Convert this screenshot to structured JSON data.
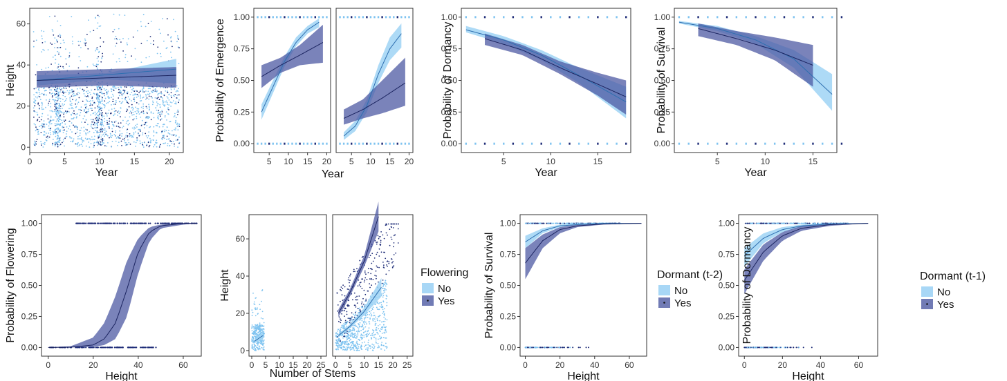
{
  "colors": {
    "no": "#9fd3f5",
    "yes": "#4e5aa3",
    "no_pt": "#7ec3f0",
    "yes_pt": "#1f2d78",
    "frame": "#333333"
  },
  "legends": [
    {
      "title": "Flowering",
      "items": [
        "No",
        "Yes"
      ]
    },
    {
      "title": "Dormant (t-2)",
      "items": [
        "No",
        "Yes"
      ]
    },
    {
      "title": "Dormant (t-1)",
      "items": [
        "No",
        "Yes"
      ]
    }
  ],
  "chart_data": [
    {
      "type": "scatter",
      "xlabel": "Year",
      "ylabel": "Height",
      "xlim": [
        0,
        22
      ],
      "ylim": [
        0,
        65
      ],
      "xticks": [
        0,
        5,
        10,
        15,
        20
      ],
      "yticks": [
        0,
        20,
        40,
        60
      ],
      "points_note": "dense jittered points per year",
      "series": [
        {
          "name": "No",
          "fit": {
            "x": [
              1,
              21
            ],
            "y": [
              32.5,
              38
            ]
          },
          "band": {
            "x": [
              1,
              11,
              21
            ],
            "lo": [
              30,
              33,
              31
            ],
            "hi": [
              35,
              36,
              43
            ]
          }
        },
        {
          "name": "Yes",
          "fit": {
            "x": [
              1,
              21
            ],
            "y": [
              32.5,
              35
            ]
          },
          "band": {
            "x": [
              1,
              11,
              21
            ],
            "lo": [
              29,
              30,
              29
            ],
            "hi": [
              37,
              38,
              39
            ]
          }
        }
      ]
    },
    {
      "type": "line",
      "ylabel": "Probability of Emergence",
      "xlabel": "Year",
      "facets": [
        {
          "xlim": [
            1,
            21
          ],
          "xticks": [
            5,
            10,
            15,
            20
          ],
          "series": [
            {
              "name": "No",
              "x": [
                3,
                6,
                9,
                12,
                15,
                18
              ],
              "y": [
                0.25,
                0.45,
                0.65,
                0.8,
                0.9,
                0.96
              ],
              "lo": [
                0.19,
                0.4,
                0.61,
                0.77,
                0.87,
                0.92
              ],
              "hi": [
                0.31,
                0.5,
                0.69,
                0.84,
                0.93,
                0.99
              ]
            },
            {
              "name": "Yes",
              "x": [
                3,
                8,
                13,
                19
              ],
              "y": [
                0.53,
                0.62,
                0.7,
                0.8
              ],
              "lo": [
                0.44,
                0.56,
                0.62,
                0.64
              ],
              "hi": [
                0.62,
                0.68,
                0.78,
                0.94
              ]
            }
          ]
        },
        {
          "xlim": [
            1,
            21
          ],
          "xticks": [
            5,
            10,
            15,
            20
          ],
          "series": [
            {
              "name": "No",
              "x": [
                3,
                6,
                9,
                12,
                15,
                18
              ],
              "y": [
                0.06,
                0.14,
                0.3,
                0.55,
                0.75,
                0.87
              ],
              "lo": [
                0.03,
                0.1,
                0.25,
                0.48,
                0.66,
                0.76
              ],
              "hi": [
                0.09,
                0.18,
                0.35,
                0.62,
                0.84,
                0.95
              ]
            },
            {
              "name": "Yes",
              "x": [
                3,
                8,
                13,
                19
              ],
              "y": [
                0.2,
                0.27,
                0.36,
                0.48
              ],
              "lo": [
                0.15,
                0.2,
                0.24,
                0.3
              ],
              "hi": [
                0.27,
                0.35,
                0.5,
                0.68
              ]
            }
          ]
        }
      ],
      "ylim": [
        0,
        1
      ],
      "yticks": [
        "0.00",
        "0.25",
        "0.50",
        "0.75",
        "1.00"
      ]
    },
    {
      "type": "line",
      "xlabel": "Year",
      "ylabel": "Probability of Dormancy",
      "xlim": [
        0.5,
        18.5
      ],
      "xticks": [
        5,
        10,
        15
      ],
      "ylim": [
        0,
        1
      ],
      "yticks": [
        "0.00",
        "0.25",
        "0.50",
        "0.75",
        "1.00"
      ],
      "series": [
        {
          "name": "No",
          "x": [
            1,
            5,
            9,
            13,
            18
          ],
          "y": [
            0.9,
            0.82,
            0.7,
            0.54,
            0.33
          ],
          "lo": [
            0.88,
            0.79,
            0.66,
            0.48,
            0.2
          ],
          "hi": [
            0.93,
            0.85,
            0.74,
            0.6,
            0.45
          ]
        },
        {
          "name": "Yes",
          "x": [
            3,
            7,
            11,
            15,
            18
          ],
          "y": [
            0.83,
            0.74,
            0.6,
            0.47,
            0.37
          ],
          "lo": [
            0.78,
            0.7,
            0.55,
            0.38,
            0.23
          ],
          "hi": [
            0.87,
            0.78,
            0.65,
            0.56,
            0.5
          ]
        }
      ]
    },
    {
      "type": "line",
      "xlabel": "Year",
      "ylabel": "Probability of Survival",
      "xlim": [
        0.5,
        17.5
      ],
      "xticks": [
        5,
        10,
        15
      ],
      "ylim": [
        0,
        1
      ],
      "yticks": [
        "0.00",
        "0.25",
        "0.50",
        "0.75",
        "1.00"
      ],
      "series": [
        {
          "name": "No",
          "x": [
            1,
            5,
            9,
            13,
            17
          ],
          "y": [
            0.96,
            0.91,
            0.82,
            0.67,
            0.39
          ],
          "lo": [
            0.95,
            0.89,
            0.79,
            0.6,
            0.26
          ],
          "hi": [
            0.97,
            0.93,
            0.85,
            0.74,
            0.55
          ]
        },
        {
          "name": "Yes",
          "x": [
            3,
            7,
            11,
            15
          ],
          "y": [
            0.91,
            0.83,
            0.74,
            0.62
          ],
          "lo": [
            0.85,
            0.78,
            0.66,
            0.45
          ],
          "hi": [
            0.95,
            0.89,
            0.84,
            0.78
          ]
        }
      ]
    },
    {
      "type": "line",
      "xlabel": "Height",
      "ylabel": "Probability of Flowering",
      "xlim": [
        -3,
        68
      ],
      "xticks": [
        0,
        20,
        40,
        60
      ],
      "ylim": [
        0,
        1
      ],
      "yticks": [
        "0.00",
        "0.25",
        "0.50",
        "0.75",
        "1.00"
      ],
      "series": [
        {
          "name": "Yes",
          "x": [
            0,
            10,
            20,
            25,
            30,
            35,
            40,
            45,
            50,
            60,
            66
          ],
          "y": [
            0,
            0.002,
            0.02,
            0.07,
            0.2,
            0.47,
            0.77,
            0.93,
            0.98,
            1,
            1
          ],
          "lo": [
            0,
            0,
            0.005,
            0.02,
            0.07,
            0.25,
            0.6,
            0.86,
            0.96,
            0.99,
            1
          ],
          "hi": [
            0.002,
            0.01,
            0.08,
            0.2,
            0.42,
            0.7,
            0.88,
            0.97,
            0.99,
            1,
            1
          ]
        }
      ]
    },
    {
      "type": "scatter",
      "xlabel": "Number of Stems",
      "ylabel": "Height",
      "ylim": [
        -3,
        73
      ],
      "yticks": [
        0,
        20,
        40,
        60
      ],
      "facets": [
        {
          "xlim": [
            -1,
            27
          ],
          "xticks": [
            0,
            5,
            10,
            15,
            20,
            25
          ],
          "series": [
            {
              "name": "No",
              "x": [
                1,
                4
              ],
              "y": [
                5,
                8
              ],
              "lo": [
                4,
                6
              ],
              "hi": [
                6,
                10
              ]
            }
          ]
        },
        {
          "xlim": [
            -1,
            27
          ],
          "xticks": [
            0,
            5,
            10,
            15,
            20,
            25
          ],
          "series": [
            {
              "name": "No",
              "x": [
                1,
                5,
                10,
                16
              ],
              "y": [
                8,
                13,
                21,
                34
              ],
              "lo": [
                7,
                12,
                19,
                29
              ],
              "hi": [
                9,
                14,
                23,
                39
              ]
            },
            {
              "name": "Yes",
              "x": [
                1,
                5,
                10,
                15
              ],
              "y": [
                20,
                31,
                48,
                72
              ],
              "lo": [
                18,
                29,
                45,
                64
              ],
              "hi": [
                22,
                33,
                51,
                80
              ]
            }
          ]
        }
      ]
    },
    {
      "type": "line",
      "xlabel": "Height",
      "ylabel": "Probability of Survival",
      "xlim": [
        -3,
        70
      ],
      "xticks": [
        0,
        20,
        40,
        60
      ],
      "ylim": [
        0,
        1
      ],
      "yticks": [
        "0.00",
        "0.25",
        "0.50",
        "0.75",
        "1.00"
      ],
      "series": [
        {
          "name": "No",
          "x": [
            0,
            10,
            20,
            30,
            45,
            67
          ],
          "y": [
            0.85,
            0.94,
            0.98,
            0.99,
            1,
            1
          ],
          "lo": [
            0.8,
            0.92,
            0.97,
            0.99,
            1,
            1
          ],
          "hi": [
            0.9,
            0.96,
            0.99,
            1,
            1,
            1
          ]
        },
        {
          "name": "Yes",
          "x": [
            0,
            10,
            20,
            30,
            45,
            67
          ],
          "y": [
            0.68,
            0.86,
            0.95,
            0.98,
            0.995,
            1
          ],
          "lo": [
            0.55,
            0.8,
            0.92,
            0.97,
            0.99,
            1
          ],
          "hi": [
            0.8,
            0.91,
            0.97,
            0.99,
            1,
            1
          ]
        }
      ]
    },
    {
      "type": "line",
      "xlabel": "Height",
      "ylabel": "Probability of Dormancy",
      "xlim": [
        -3,
        70
      ],
      "xticks": [
        0,
        20,
        40,
        60
      ],
      "ylim": [
        0,
        1
      ],
      "yticks": [
        "0.00",
        "0.25",
        "0.50",
        "0.75",
        "1.00"
      ],
      "series": [
        {
          "name": "No",
          "x": [
            0,
            10,
            20,
            30,
            45,
            65
          ],
          "y": [
            0.74,
            0.88,
            0.95,
            0.98,
            0.995,
            1
          ],
          "lo": [
            0.65,
            0.84,
            0.93,
            0.97,
            0.99,
            1
          ],
          "hi": [
            0.8,
            0.92,
            0.97,
            0.99,
            1,
            1
          ]
        },
        {
          "name": "Yes",
          "x": [
            0,
            10,
            20,
            30,
            45,
            65
          ],
          "y": [
            0.54,
            0.77,
            0.9,
            0.96,
            0.99,
            1
          ],
          "lo": [
            0.43,
            0.7,
            0.86,
            0.94,
            0.98,
            1
          ],
          "hi": [
            0.63,
            0.83,
            0.93,
            0.98,
            1,
            1
          ]
        }
      ]
    }
  ]
}
